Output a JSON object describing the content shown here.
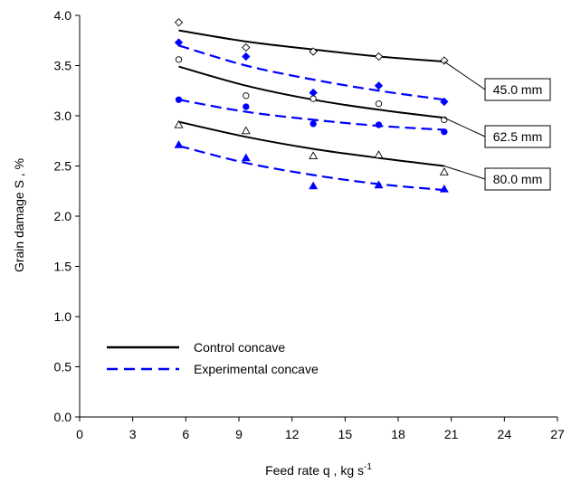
{
  "chart_data": {
    "type": "scatter",
    "xlabel": "Feed rate  q ,  kg s",
    "xlabel_superscript": "-1",
    "ylabel": "Grain damage   S , %",
    "xlim": [
      0,
      27
    ],
    "ylim": [
      0.0,
      4.0
    ],
    "xticks": [
      "0",
      "3",
      "6",
      "9",
      "12",
      "15",
      "18",
      "21",
      "24",
      "27"
    ],
    "yticks": [
      "0.0",
      "0.5",
      "1.0",
      "1.5",
      "2.0",
      "2.5",
      "3.0",
      "3.5",
      "4.0"
    ],
    "grid": false,
    "legend": {
      "placement": "bottom-left",
      "entries": [
        {
          "label": "Control concave",
          "style": "solid",
          "color": "#000000"
        },
        {
          "label": "Experimental concave",
          "style": "dashed",
          "color": "#0000ff"
        }
      ]
    },
    "groups": [
      {
        "label": "45.0 mm",
        "control": {
          "marker": "diamond-open",
          "points": [
            [
              5.6,
              3.93
            ],
            [
              9.4,
              3.68
            ],
            [
              13.2,
              3.64
            ],
            [
              16.9,
              3.59
            ],
            [
              20.6,
              3.55
            ]
          ],
          "fit": [
            [
              5.6,
              3.85
            ],
            [
              9.4,
              3.74
            ],
            [
              13.2,
              3.66
            ],
            [
              16.9,
              3.59
            ],
            [
              20.6,
              3.54
            ]
          ]
        },
        "experimental": {
          "marker": "diamond-filled",
          "points": [
            [
              5.6,
              3.73
            ],
            [
              9.4,
              3.59
            ],
            [
              13.2,
              3.23
            ],
            [
              16.9,
              3.3
            ],
            [
              20.6,
              3.14
            ]
          ],
          "fit": [
            [
              5.6,
              3.7
            ],
            [
              9.4,
              3.5
            ],
            [
              13.2,
              3.36
            ],
            [
              16.9,
              3.25
            ],
            [
              20.6,
              3.16
            ]
          ]
        }
      },
      {
        "label": "62.5 mm",
        "control": {
          "marker": "circle-open",
          "points": [
            [
              5.6,
              3.56
            ],
            [
              9.4,
              3.2
            ],
            [
              13.2,
              3.17
            ],
            [
              16.9,
              3.12
            ],
            [
              20.6,
              2.96
            ]
          ],
          "fit": [
            [
              5.6,
              3.49
            ],
            [
              9.4,
              3.3
            ],
            [
              13.2,
              3.16
            ],
            [
              16.9,
              3.06
            ],
            [
              20.6,
              2.98
            ]
          ]
        },
        "experimental": {
          "marker": "circle-filled",
          "points": [
            [
              5.6,
              3.16
            ],
            [
              9.4,
              3.09
            ],
            [
              13.2,
              2.92
            ],
            [
              16.9,
              2.91
            ],
            [
              20.6,
              2.84
            ]
          ],
          "fit": [
            [
              5.6,
              3.16
            ],
            [
              9.4,
              3.04
            ],
            [
              13.2,
              2.96
            ],
            [
              16.9,
              2.9
            ],
            [
              20.6,
              2.86
            ]
          ]
        }
      },
      {
        "label": "80.0 mm",
        "control": {
          "marker": "triangle-open",
          "points": [
            [
              5.6,
              2.91
            ],
            [
              9.4,
              2.85
            ],
            [
              13.2,
              2.6
            ],
            [
              16.9,
              2.61
            ],
            [
              20.6,
              2.44
            ]
          ],
          "fit": [
            [
              5.6,
              2.94
            ],
            [
              9.4,
              2.79
            ],
            [
              13.2,
              2.67
            ],
            [
              16.9,
              2.58
            ],
            [
              20.6,
              2.5
            ]
          ]
        },
        "experimental": {
          "marker": "triangle-filled",
          "points": [
            [
              5.6,
              2.71
            ],
            [
              9.4,
              2.58
            ],
            [
              13.2,
              2.3
            ],
            [
              16.9,
              2.31
            ],
            [
              20.6,
              2.27
            ]
          ],
          "fit": [
            [
              5.6,
              2.7
            ],
            [
              9.4,
              2.53
            ],
            [
              13.2,
              2.41
            ],
            [
              16.9,
              2.32
            ],
            [
              20.6,
              2.26
            ]
          ]
        }
      }
    ]
  }
}
